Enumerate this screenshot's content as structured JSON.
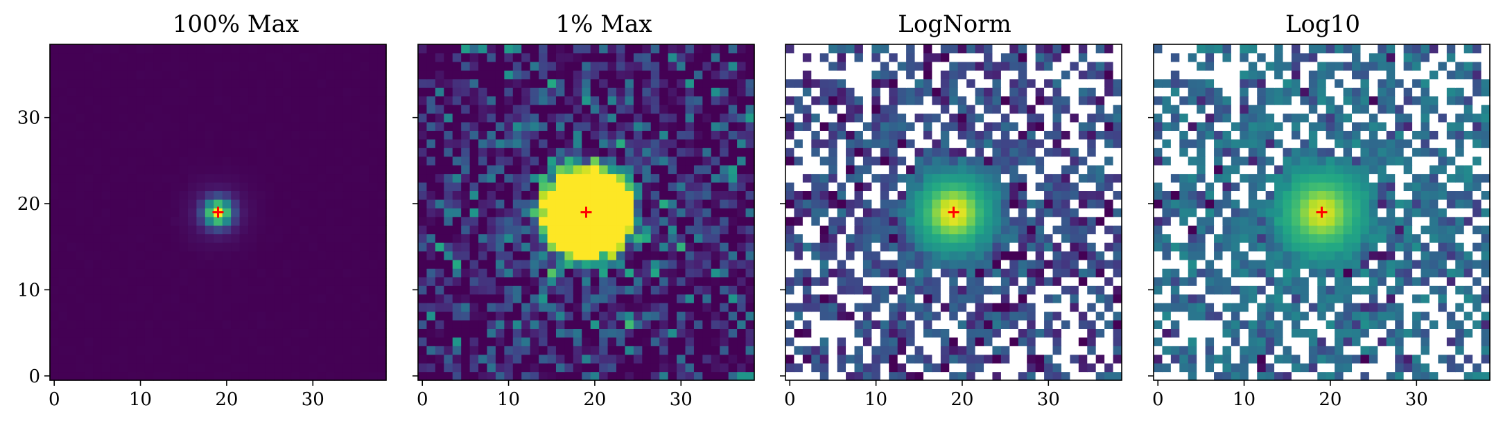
{
  "chart_data": [
    {
      "type": "heatmap",
      "title": "100% Max",
      "norm": "linear",
      "vmax_fraction_of_max": 1.0,
      "grid_size": [
        39,
        39
      ],
      "xlim": [
        -0.5,
        38.5
      ],
      "ylim": [
        -0.5,
        38.5
      ],
      "xticks": [
        0,
        10,
        20,
        30
      ],
      "yticks": [
        0,
        10,
        20,
        30
      ],
      "x_tick_labels": [
        "0",
        "10",
        "20",
        "30"
      ],
      "y_tick_labels": [
        "0",
        "10",
        "20",
        "30"
      ],
      "colormap": "viridis",
      "marker": {
        "x": 19,
        "y": 19,
        "symbol": "+",
        "color": "#ff0000"
      }
    },
    {
      "type": "heatmap",
      "title": "1% Max",
      "norm": "linear",
      "vmax_fraction_of_max": 0.01,
      "grid_size": [
        39,
        39
      ],
      "xlim": [
        -0.5,
        38.5
      ],
      "ylim": [
        -0.5,
        38.5
      ],
      "xticks": [
        0,
        10,
        20,
        30
      ],
      "yticks": [
        0,
        10,
        20,
        30
      ],
      "x_tick_labels": [
        "0",
        "10",
        "20",
        "30"
      ],
      "y_tick_labels": [],
      "colormap": "viridis",
      "marker": {
        "x": 19,
        "y": 19,
        "symbol": "+",
        "color": "#ff0000"
      }
    },
    {
      "type": "heatmap",
      "title": "LogNorm",
      "norm": "log",
      "grid_size": [
        39,
        39
      ],
      "xlim": [
        -0.5,
        38.5
      ],
      "ylim": [
        -0.5,
        38.5
      ],
      "xticks": [
        0,
        10,
        20,
        30
      ],
      "yticks": [
        0,
        10,
        20,
        30
      ],
      "x_tick_labels": [
        "0",
        "10",
        "20",
        "30"
      ],
      "y_tick_labels": [],
      "colormap": "viridis",
      "masked_color": "#ffffff",
      "marker": {
        "x": 19,
        "y": 19,
        "symbol": "+",
        "color": "#ff0000"
      }
    },
    {
      "type": "heatmap",
      "title": "Log10",
      "norm": "log10",
      "grid_size": [
        39,
        39
      ],
      "xlim": [
        -0.5,
        38.5
      ],
      "ylim": [
        -0.5,
        38.5
      ],
      "xticks": [
        0,
        10,
        20,
        30
      ],
      "yticks": [
        0,
        10,
        20,
        30
      ],
      "x_tick_labels": [
        "0",
        "10",
        "20",
        "30"
      ],
      "y_tick_labels": [],
      "colormap": "viridis",
      "masked_color": "#ffffff",
      "marker": {
        "x": 19,
        "y": 19,
        "symbol": "+",
        "color": "#ff0000"
      }
    }
  ]
}
